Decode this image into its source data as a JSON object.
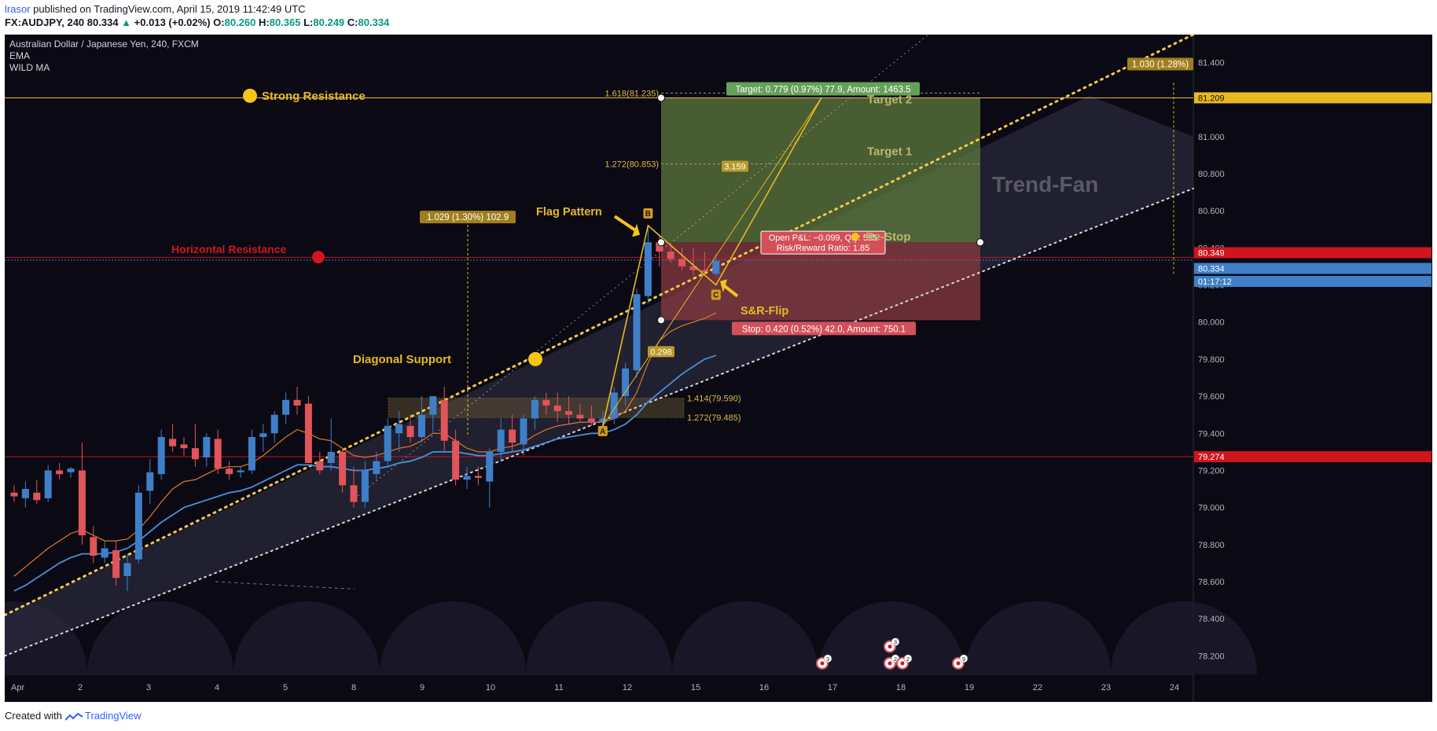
{
  "header": {
    "author": "lrasor",
    "published_text": "published on TradingView.com, April 15, 2019 11:42:49 UTC"
  },
  "quote": {
    "symbol": "FX:AUDJPY, 240",
    "last": "80.334",
    "change": "+0.013 (+0.02%)",
    "open_label": "O:",
    "open": "80.260",
    "high_label": "H:",
    "high": "80.365",
    "low_label": "L:",
    "low": "80.249",
    "close_label": "C:",
    "close": "80.334"
  },
  "legend": {
    "title": "Australian Dollar / Japanese Yen, 240, FXCM",
    "ema": "EMA",
    "wild_ma": "WILD MA"
  },
  "footer": {
    "created_with": "Created with",
    "brand": "TradingView"
  },
  "colors": {
    "background": "#0b0a14",
    "up": "#3f7fc8",
    "down": "#e0545a",
    "gold": "#e8b923",
    "resistance_red": "#c0141e",
    "target_green": "#5e7a3c",
    "stop_red": "#8a3a40"
  },
  "chart_data": {
    "type": "candlestick",
    "title": "Australian Dollar / Japanese Yen, 240, FXCM",
    "ylim": [
      78.1,
      81.55
    ],
    "y_ticks": [
      "81.400",
      "81.200",
      "81.000",
      "80.800",
      "80.600",
      "80.400",
      "80.200",
      "80.000",
      "79.800",
      "79.600",
      "79.400",
      "79.200",
      "79.000",
      "78.800",
      "78.600",
      "78.400",
      "78.200"
    ],
    "x_ticks": [
      "Apr",
      "2",
      "3",
      "4",
      "5",
      "8",
      "9",
      "10",
      "11",
      "12",
      "15",
      "16",
      "17",
      "18",
      "19",
      "22",
      "23",
      "24"
    ],
    "candles_ohlc": [
      [
        79.08,
        79.12,
        79.03,
        79.06
      ],
      [
        79.05,
        79.14,
        79.0,
        79.1
      ],
      [
        79.08,
        79.15,
        79.02,
        79.04
      ],
      [
        79.05,
        79.23,
        79.03,
        79.2
      ],
      [
        79.2,
        79.24,
        79.15,
        79.18
      ],
      [
        79.19,
        79.22,
        79.16,
        79.21
      ],
      [
        79.2,
        79.35,
        78.8,
        78.85
      ],
      [
        78.84,
        78.9,
        78.7,
        78.74
      ],
      [
        78.73,
        78.82,
        78.7,
        78.78
      ],
      [
        78.77,
        78.82,
        78.58,
        78.62
      ],
      [
        78.63,
        78.75,
        78.55,
        78.7
      ],
      [
        78.72,
        79.12,
        78.7,
        79.08
      ],
      [
        79.09,
        79.26,
        79.02,
        79.19
      ],
      [
        79.18,
        79.42,
        79.15,
        79.38
      ],
      [
        79.37,
        79.45,
        79.3,
        79.33
      ],
      [
        79.34,
        79.38,
        79.28,
        79.32
      ],
      [
        79.32,
        79.45,
        79.22,
        79.26
      ],
      [
        79.27,
        79.4,
        79.22,
        79.38
      ],
      [
        79.37,
        79.42,
        79.18,
        79.21
      ],
      [
        79.21,
        79.25,
        79.15,
        79.18
      ],
      [
        79.19,
        79.22,
        79.16,
        79.2
      ],
      [
        79.2,
        79.42,
        79.18,
        79.38
      ],
      [
        79.38,
        79.45,
        79.3,
        79.4
      ],
      [
        79.4,
        79.52,
        79.35,
        79.5
      ],
      [
        79.5,
        79.62,
        79.45,
        79.58
      ],
      [
        79.58,
        79.65,
        79.5,
        79.55
      ],
      [
        79.56,
        79.6,
        79.32,
        79.24
      ],
      [
        79.25,
        79.3,
        79.18,
        79.2
      ],
      [
        79.24,
        79.48,
        79.2,
        79.3
      ],
      [
        79.3,
        79.32,
        79.08,
        79.12
      ],
      [
        79.12,
        79.22,
        79.0,
        79.03
      ],
      [
        79.03,
        79.25,
        79.0,
        79.2
      ],
      [
        79.18,
        79.3,
        79.15,
        79.25
      ],
      [
        79.25,
        79.48,
        79.22,
        79.44
      ],
      [
        79.4,
        79.52,
        79.3,
        79.45
      ],
      [
        79.44,
        79.5,
        79.35,
        79.38
      ],
      [
        79.38,
        79.6,
        79.35,
        79.5
      ],
      [
        79.5,
        79.6,
        79.4,
        79.6
      ],
      [
        79.58,
        79.65,
        79.3,
        79.36
      ],
      [
        79.36,
        79.42,
        79.12,
        79.15
      ],
      [
        79.15,
        79.22,
        79.1,
        79.17
      ],
      [
        79.17,
        79.22,
        79.12,
        79.16
      ],
      [
        79.14,
        79.32,
        79.0,
        79.3
      ],
      [
        79.3,
        79.48,
        79.25,
        79.42
      ],
      [
        79.42,
        79.5,
        79.3,
        79.35
      ],
      [
        79.34,
        79.5,
        79.28,
        79.48
      ],
      [
        79.48,
        79.6,
        79.42,
        79.58
      ],
      [
        79.58,
        79.62,
        79.5,
        79.55
      ],
      [
        79.55,
        79.62,
        79.46,
        79.52
      ],
      [
        79.52,
        79.6,
        79.45,
        79.5
      ],
      [
        79.5,
        79.56,
        79.46,
        79.48
      ],
      [
        79.48,
        79.55,
        79.44,
        79.46
      ],
      [
        79.46,
        79.52,
        79.43,
        79.48
      ],
      [
        79.48,
        79.65,
        79.45,
        79.62
      ],
      [
        79.6,
        79.78,
        79.55,
        79.75
      ],
      [
        79.74,
        80.18,
        79.7,
        80.15
      ],
      [
        80.14,
        80.52,
        80.1,
        80.43
      ],
      [
        80.43,
        80.47,
        80.3,
        80.38
      ],
      [
        80.38,
        80.42,
        80.32,
        80.34
      ],
      [
        80.34,
        80.4,
        80.28,
        80.3
      ],
      [
        80.3,
        80.4,
        80.25,
        80.28
      ],
      [
        80.28,
        80.38,
        80.26,
        80.27
      ],
      [
        80.26,
        80.37,
        80.25,
        80.33
      ]
    ],
    "ema_values": [
      78.63,
      78.68,
      78.73,
      78.78,
      78.82,
      78.86,
      78.88,
      78.85,
      78.82,
      78.82,
      78.83,
      78.88,
      78.95,
      79.03,
      79.1,
      79.14,
      79.15,
      79.18,
      79.21,
      79.22,
      79.22,
      79.24,
      79.28,
      79.33,
      79.38,
      79.42,
      79.4,
      79.37,
      79.36,
      79.32,
      79.28,
      79.27,
      79.28,
      79.3,
      79.32,
      79.33,
      79.36,
      79.4,
      79.4,
      79.36,
      79.32,
      79.3,
      79.3,
      79.32,
      79.33,
      79.35,
      79.39,
      79.42,
      79.44,
      79.45,
      79.46,
      79.46,
      79.46,
      79.48,
      79.52,
      79.62,
      79.78,
      79.9,
      79.95,
      79.98,
      80.0,
      80.02,
      80.05
    ],
    "wild_ma_values": [
      78.55,
      78.58,
      78.62,
      78.66,
      78.7,
      78.73,
      78.75,
      78.75,
      78.75,
      78.76,
      78.78,
      78.82,
      78.87,
      78.92,
      78.96,
      79.0,
      79.02,
      79.04,
      79.06,
      79.08,
      79.09,
      79.11,
      79.14,
      79.17,
      79.2,
      79.23,
      79.23,
      79.22,
      79.22,
      79.21,
      79.2,
      79.2,
      79.21,
      79.22,
      79.24,
      79.25,
      79.27,
      79.3,
      79.3,
      79.3,
      79.29,
      79.28,
      79.28,
      79.29,
      79.3,
      79.31,
      79.33,
      79.35,
      79.37,
      79.38,
      79.39,
      79.4,
      79.4,
      79.42,
      79.45,
      79.5,
      79.57,
      79.62,
      79.67,
      79.72,
      79.76,
      79.8,
      79.82
    ],
    "levels": {
      "strong_resistance": 81.209,
      "horizontal_resistance": 80.349,
      "support_line": 79.274,
      "last_price": 80.334
    },
    "price_labels": {
      "strong_resistance": "81.209",
      "horizontal_resistance": "80.349",
      "last_price": "80.334",
      "countdown": "01:17:12",
      "support_line": "79.274"
    },
    "fib_levels": [
      {
        "label": "1.618(81.235)",
        "value": 81.235
      },
      {
        "label": "1.272(80.853)",
        "value": 80.853
      },
      {
        "label": "1.414(79.590)",
        "value": 79.59
      },
      {
        "label": "1.272(79.485)",
        "value": 79.485
      }
    ],
    "position": {
      "entry": 80.43,
      "target": 81.209,
      "stop": 80.01,
      "target_label": "Target: 0.779 (0.97%) 77.9, Amount: 1463.5",
      "stop_label": "Stop: 0.420 (0.52%) 42.0, Amount: 750.1",
      "pnl_label": "Open P&L: −0.099, Qty: 595",
      "rr_label": "Risk/Reward Ratio: 1.85"
    },
    "abc_points": {
      "A": "A",
      "B": "B",
      "C": "C"
    },
    "ratio_labels": {
      "r1": "3.159",
      "r2": "0.298"
    },
    "measure_labels": {
      "left": "1.029 (1.30%) 102.9",
      "right": "1.030 (1.28%)"
    },
    "annotations": {
      "strong_resistance": "Strong Resistance",
      "horizontal_resistance": "Horizontal Resistance",
      "diagonal_support": "Diagonal Support",
      "flag_pattern": "Flag Pattern",
      "sr_flip": "S&R-Flip",
      "target_1": "Target 1",
      "target_2": "Target 2",
      "reentry_stop": "Re-Stop",
      "trend_fan": "Trend-Fan"
    },
    "event_counts": [
      "3",
      "3",
      "2",
      "2",
      "9"
    ]
  }
}
